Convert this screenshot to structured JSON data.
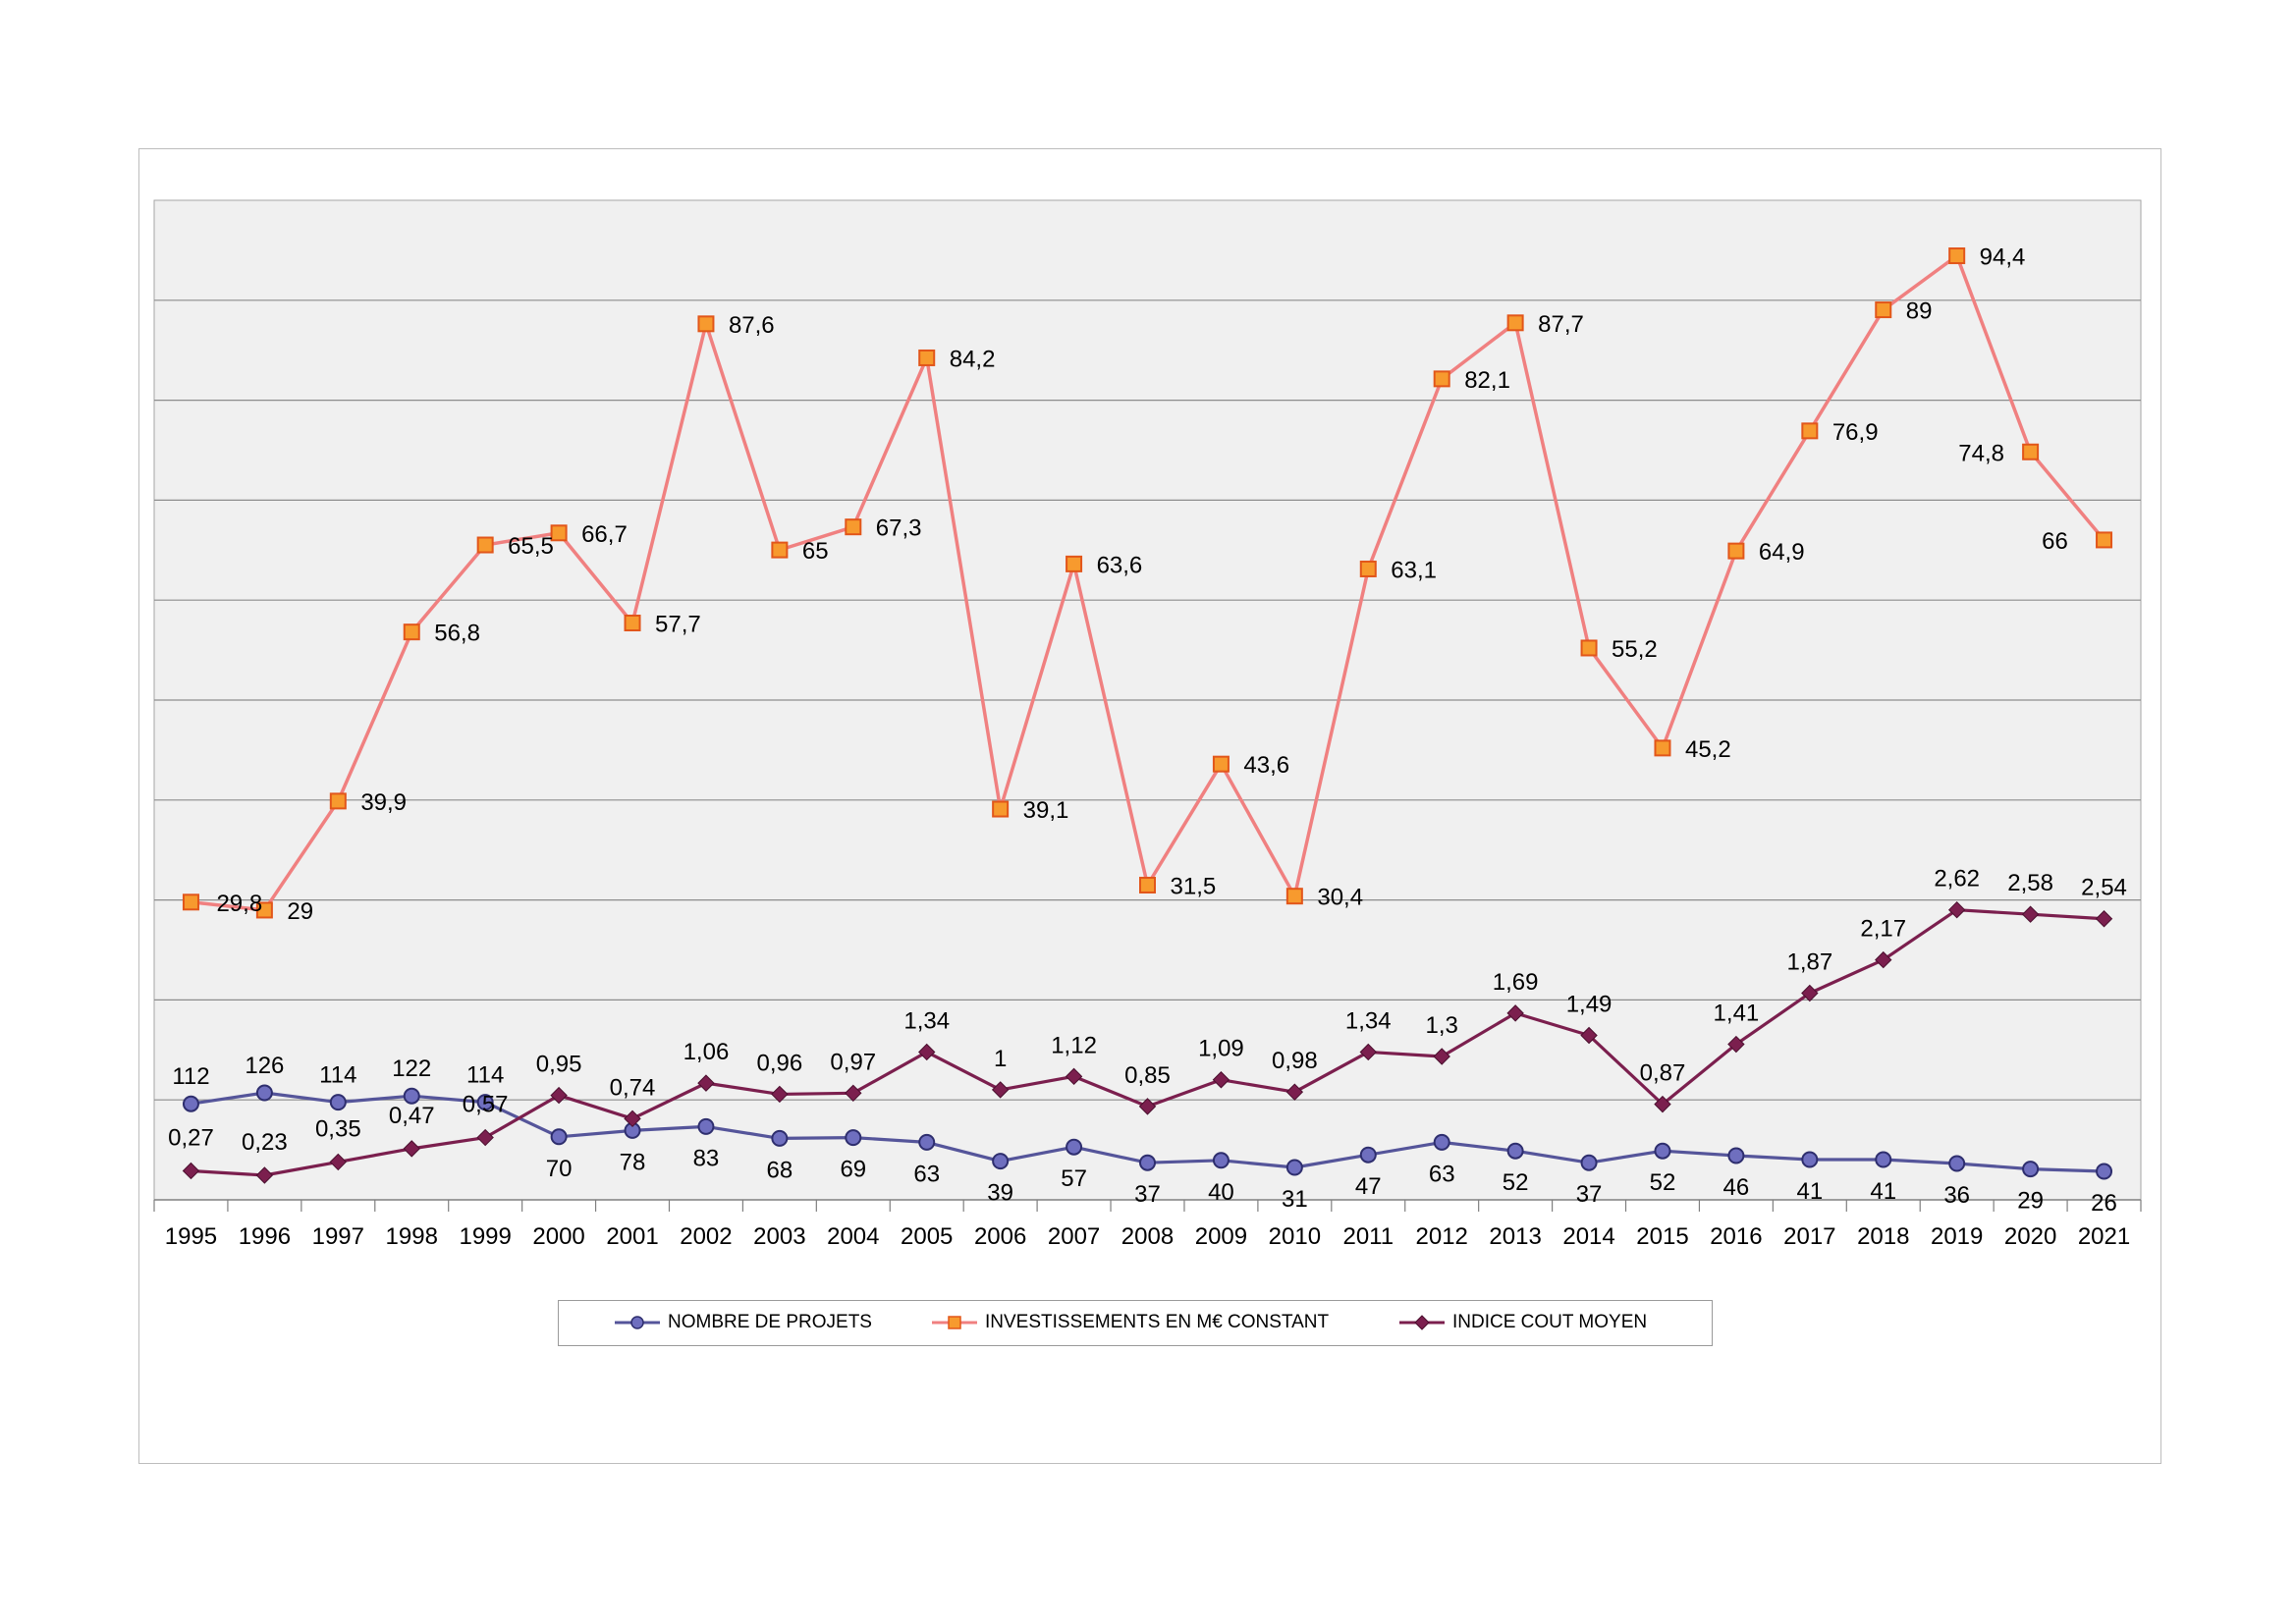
{
  "chart_data": {
    "type": "line",
    "categories": [
      "1995",
      "1996",
      "1997",
      "1998",
      "1999",
      "2000",
      "2001",
      "2002",
      "2003",
      "2004",
      "2005",
      "2006",
      "2007",
      "2008",
      "2009",
      "2010",
      "2011",
      "2012",
      "2013",
      "2014",
      "2015",
      "2016",
      "2017",
      "2018",
      "2019",
      "2020",
      "2021"
    ],
    "series": [
      {
        "name": "NOMBRE DE PROJETS",
        "color": "#55559a",
        "marker": "circle",
        "values": [
          112,
          126,
          114,
          122,
          114,
          70,
          78,
          83,
          68,
          69,
          63,
          39,
          57,
          37,
          40,
          31,
          47,
          63,
          52,
          37,
          52,
          46,
          41,
          41,
          36,
          29,
          26
        ],
        "labels": [
          "112",
          "126",
          "114",
          "122",
          "114",
          "70",
          "78",
          "83",
          "68",
          "69",
          "63",
          "39",
          "57",
          "37",
          "40",
          "31",
          "47",
          "63",
          "52",
          "37",
          "52",
          "46",
          "41",
          "41",
          "36",
          "29",
          "26"
        ]
      },
      {
        "name": "INVESTISSEMENTS EN M€ CONSTANT",
        "color": "#f08080",
        "marker": "square",
        "marker_fill": "#f79a2e",
        "marker_stroke": "#e2561a",
        "values": [
          29.8,
          29,
          39.9,
          56.8,
          65.5,
          66.7,
          57.7,
          87.6,
          65,
          67.3,
          84.2,
          39.1,
          63.6,
          31.5,
          43.6,
          30.4,
          63.1,
          82.1,
          87.7,
          55.2,
          45.2,
          64.9,
          76.9,
          89,
          94.4,
          74.8,
          66
        ],
        "labels": [
          "29,8",
          "29",
          "39,9",
          "56,8",
          "65,5",
          "66,7",
          "57,7",
          "87,6",
          "65",
          "67,3",
          "84,2",
          "39,1",
          "63,6",
          "31,5",
          "43,6",
          "30,4",
          "63,1",
          "82,1",
          "87,7",
          "55,2",
          "45,2",
          "64,9",
          "76,9",
          "89",
          "94,4",
          "74,8",
          "66"
        ]
      },
      {
        "name": "INDICE COUT MOYEN",
        "color": "#7b1f4e",
        "marker": "diamond",
        "values": [
          0.27,
          0.23,
          0.35,
          0.47,
          0.57,
          0.95,
          0.74,
          1.06,
          0.96,
          0.97,
          1.34,
          1,
          1.12,
          0.85,
          1.09,
          0.98,
          1.34,
          1.3,
          1.69,
          1.49,
          0.87,
          1.41,
          1.87,
          2.17,
          2.62,
          2.58,
          2.54
        ],
        "labels": [
          "0,27",
          "0,23",
          "0,35",
          "0,47",
          "0,57",
          "0,95",
          "0,74",
          "1,06",
          "0,96",
          "0,97",
          "1,34",
          "1",
          "1,12",
          "0,85",
          "1,09",
          "0,98",
          "1,34",
          "1,3",
          "1,69",
          "1,49",
          "0,87",
          "1,41",
          "1,87",
          "2,17",
          "2,62",
          "2,58",
          "2,54"
        ]
      }
    ],
    "gridlines": 10,
    "plot_background": "#f0f0f0",
    "legend_position": "bottom",
    "title": "",
    "xlabel": "",
    "ylabel": ""
  }
}
